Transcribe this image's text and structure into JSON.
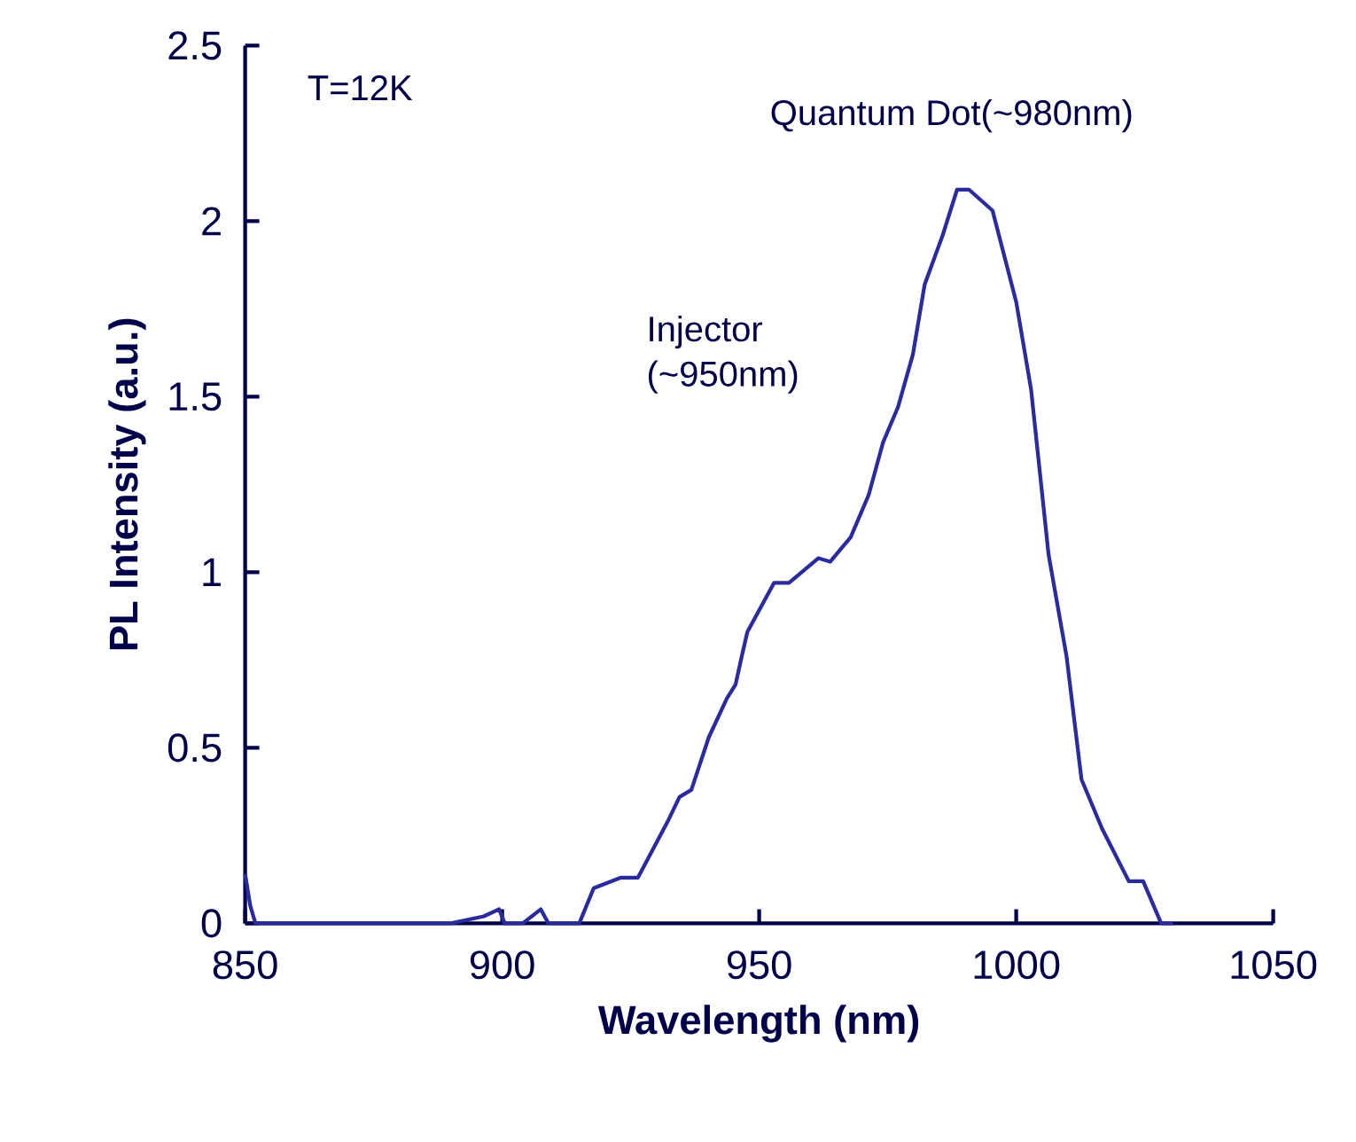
{
  "chart_data": {
    "type": "line",
    "xlabel": "Wavelength (nm)",
    "ylabel": "PL Intensity (a.u.)",
    "annotations": [
      "T=12K",
      "Quantum Dot(~980nm)",
      "Injector (~950nm)"
    ],
    "xlim": [
      850,
      1050
    ],
    "ylim": [
      0,
      2.5
    ],
    "xticks": [
      850,
      900,
      950,
      1000,
      1050
    ],
    "yticks": [
      0,
      0.5,
      1,
      1.5,
      2,
      2.5
    ],
    "series": [
      {
        "color": "#2b2ba0",
        "x": [
          850,
          851,
          852,
          890,
          896.4,
          899.4,
          900.5,
          904,
          907.5,
          909,
          915,
          917.8,
          923,
          926.4,
          932.2,
          934.5,
          936.8,
          940.2,
          943.7,
          945.4,
          946.6,
          947.7,
          952.9,
          955.8,
          961.5,
          963.8,
          967.8,
          971.3,
          974.1,
          977,
          979.9,
          982.2,
          985.7,
          988.5,
          990.8,
          995.4,
          1000,
          1002.9,
          1006.3,
          1009.8,
          1012.7,
          1016.7,
          1021.9,
          1024.7,
          1028.2,
          1030.5
        ],
        "values": [
          0.14,
          0.05,
          0,
          0,
          0.02,
          0.04,
          0,
          0,
          0.04,
          0,
          0,
          0.1,
          0.13,
          0.13,
          0.29,
          0.36,
          0.38,
          0.53,
          0.64,
          0.68,
          0.76,
          0.83,
          0.97,
          0.97,
          1.04,
          1.03,
          1.1,
          1.22,
          1.37,
          1.47,
          1.62,
          1.82,
          1.96,
          2.09,
          2.09,
          2.03,
          1.77,
          1.52,
          1.05,
          0.76,
          0.41,
          0.27,
          0.12,
          0.12,
          0,
          0
        ]
      }
    ]
  }
}
